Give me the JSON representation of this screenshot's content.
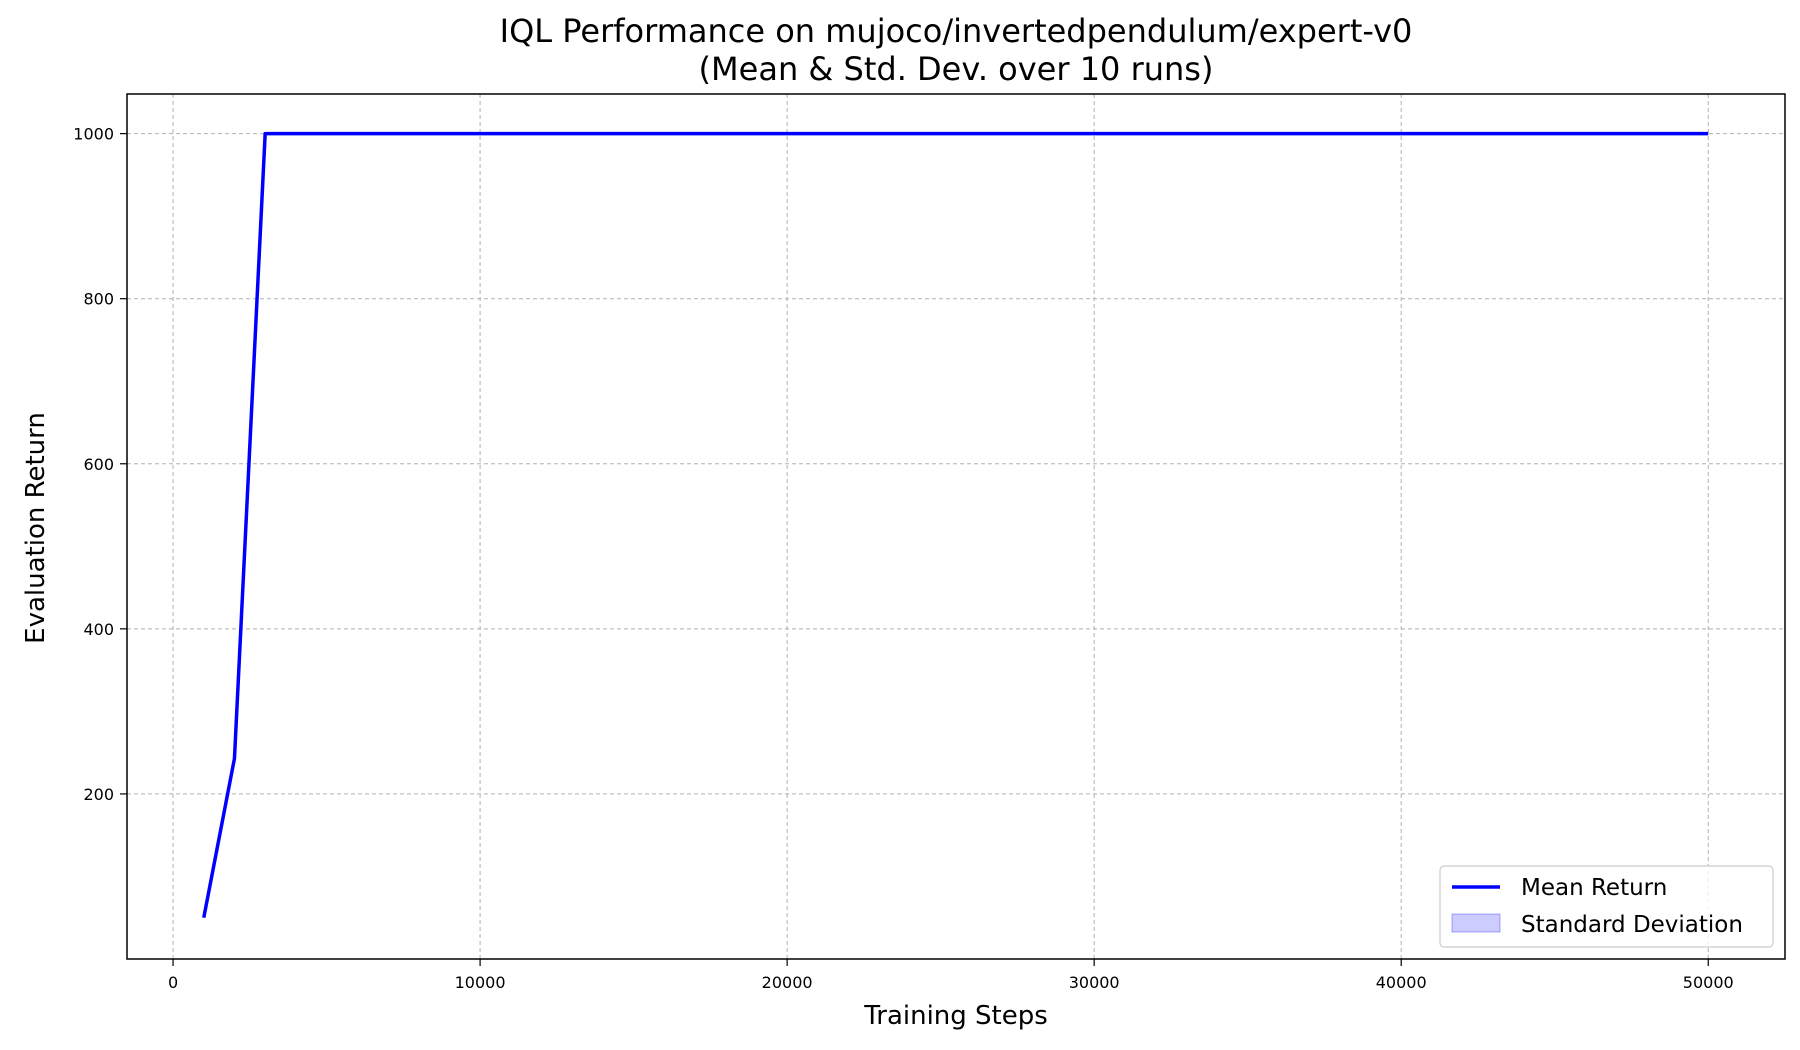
{
  "chart_data": {
    "type": "line",
    "title_line1": "IQL Performance on mujoco/invertedpendulum/expert-v0",
    "title_line2": "(Mean & Std. Dev. over 10 runs)",
    "xlabel": "Training Steps",
    "ylabel": "Evaluation Return",
    "xlim": [
      -1500,
      52500
    ],
    "ylim": [
      0,
      1048
    ],
    "xticks": [
      0,
      10000,
      20000,
      30000,
      40000,
      50000
    ],
    "xtick_labels": [
      "0",
      "10000",
      "20000",
      "30000",
      "40000",
      "50000"
    ],
    "yticks": [
      200,
      400,
      600,
      800,
      1000
    ],
    "ytick_labels": [
      "200",
      "400",
      "600",
      "800",
      "1000"
    ],
    "grid": true,
    "legend_position": "bottom-right",
    "series": [
      {
        "name": "Mean Return",
        "color": "#0000ff",
        "x": [
          1000,
          2000,
          3000,
          4000,
          5000,
          10000,
          15000,
          20000,
          25000,
          30000,
          35000,
          40000,
          45000,
          50000
        ],
        "y": [
          50,
          243,
          1000,
          1000,
          1000,
          1000,
          1000,
          1000,
          1000,
          1000,
          1000,
          1000,
          1000,
          1000
        ],
        "std": [
          0,
          0,
          0,
          0,
          0,
          0,
          0,
          0,
          0,
          0,
          0,
          0,
          0,
          0
        ]
      }
    ],
    "legend": [
      {
        "label": "Mean Return",
        "kind": "line",
        "color": "#0000ff"
      },
      {
        "label": "Standard Deviation",
        "kind": "patch",
        "color": "#0000ff"
      }
    ]
  }
}
